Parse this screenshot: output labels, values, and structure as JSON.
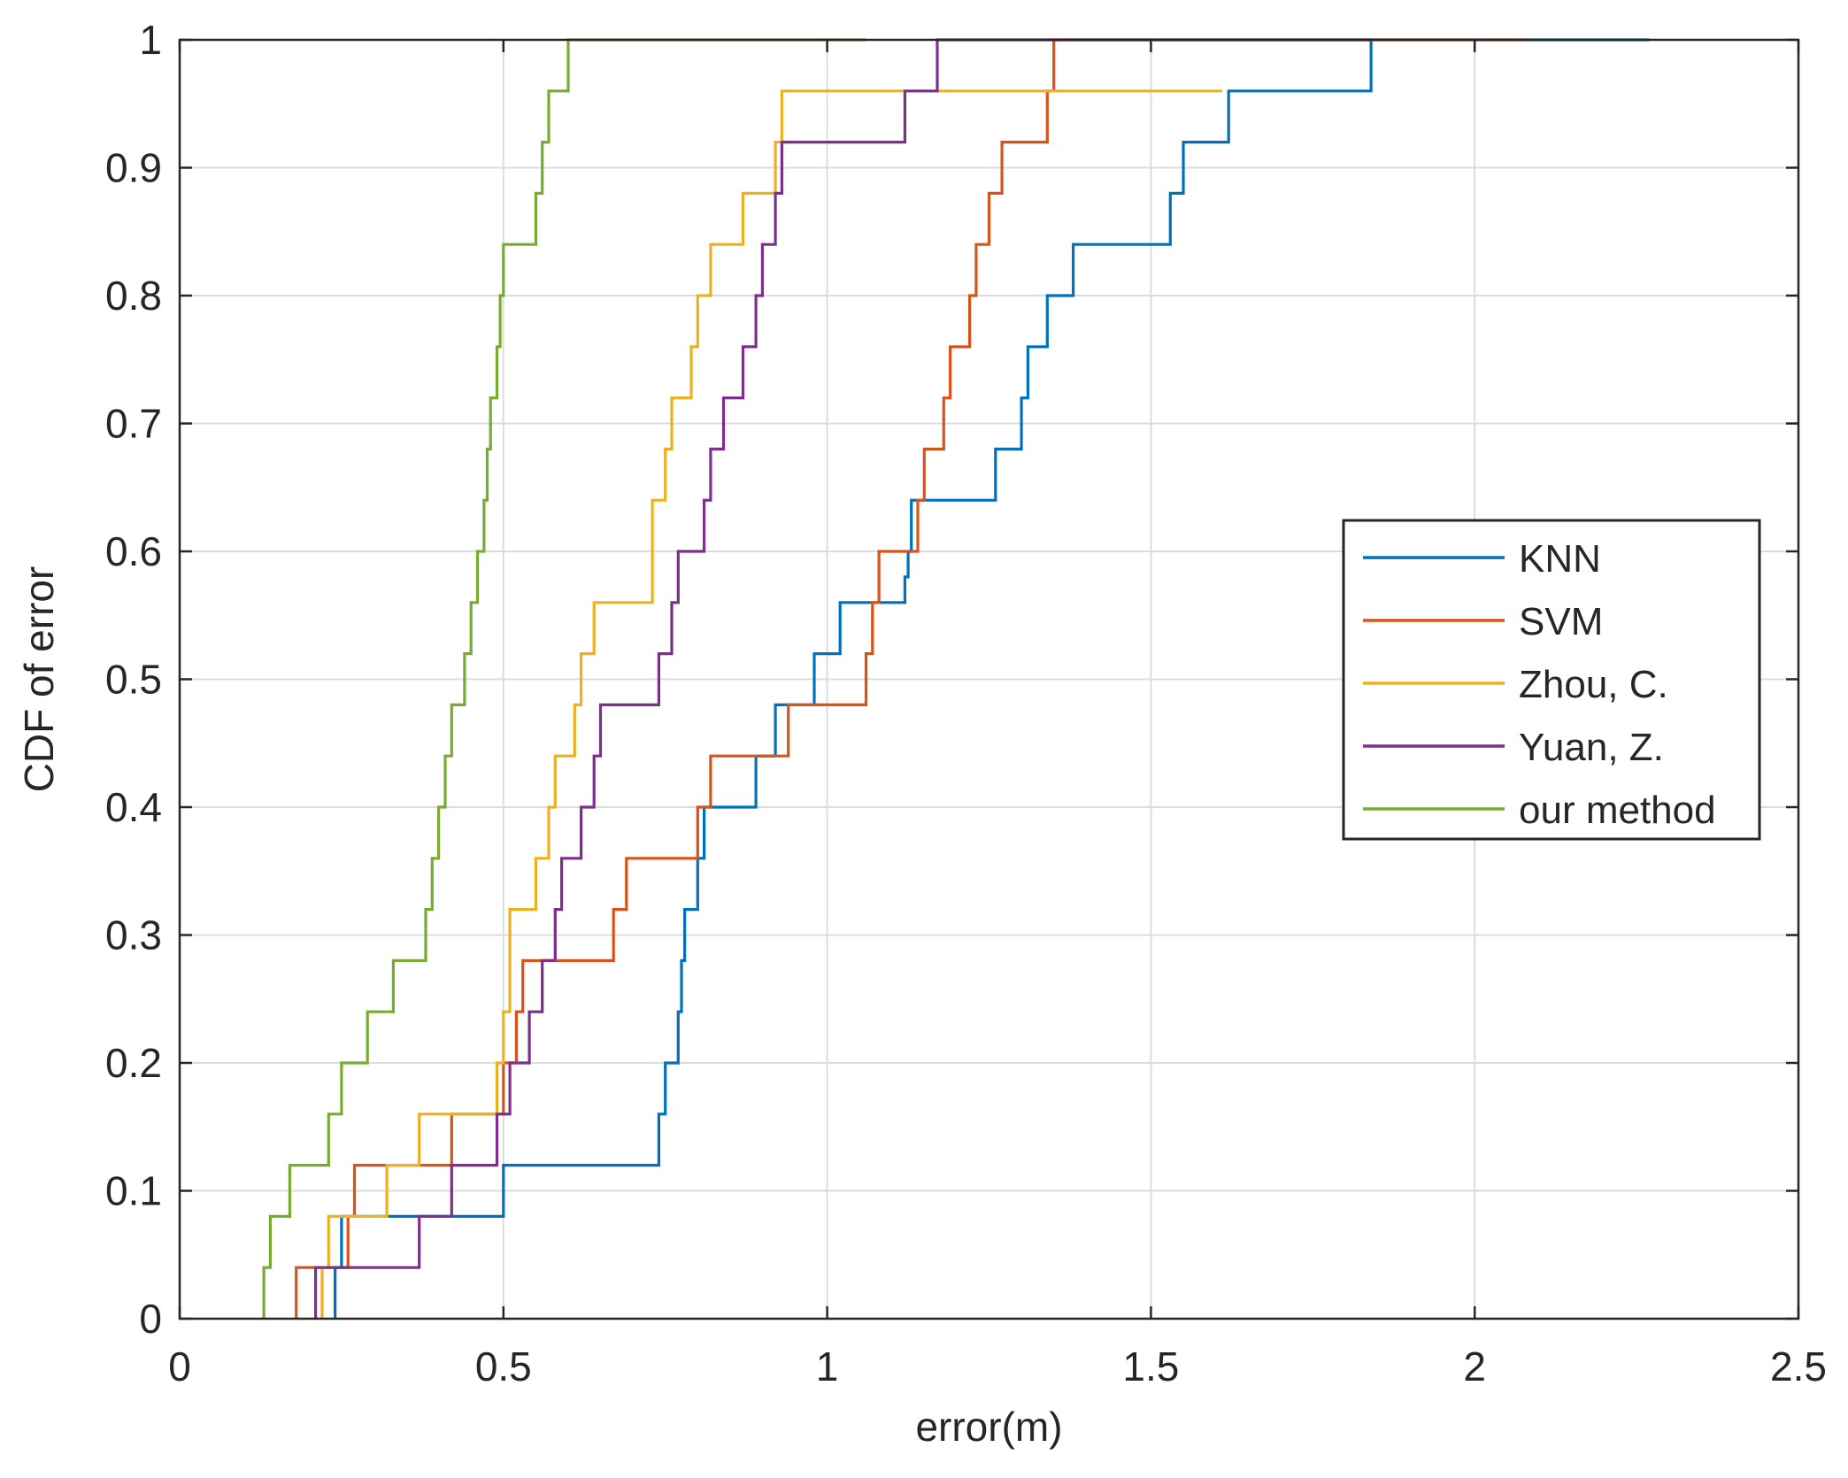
{
  "chart_data": {
    "type": "line",
    "style": "stairs",
    "title": "",
    "xlabel": "error(m)",
    "ylabel": "CDF of error",
    "xlim": [
      0,
      2.5
    ],
    "ylim": [
      0,
      1
    ],
    "xticks": [
      0,
      0.5,
      1,
      1.5,
      2,
      2.5
    ],
    "xtick_labels": [
      "0",
      "0.5",
      "1",
      "1.5",
      "2",
      "2.5"
    ],
    "yticks": [
      0,
      0.1,
      0.2,
      0.3,
      0.4,
      0.5,
      0.6,
      0.7,
      0.8,
      0.9,
      1
    ],
    "ytick_labels": [
      "0",
      "0.1",
      "0.2",
      "0.3",
      "0.4",
      "0.5",
      "0.6",
      "0.7",
      "0.8",
      "0.9",
      "1"
    ],
    "grid": true,
    "legend_position": "center-right",
    "series": [
      {
        "name": "KNN",
        "color": "#0072BD",
        "x": [
          0.24,
          0.25,
          0.5,
          0.74,
          0.75,
          0.77,
          0.775,
          0.78,
          0.8,
          0.81,
          0.89,
          0.92,
          0.98,
          1.02,
          1.12,
          1.125,
          1.13,
          1.26,
          1.3,
          1.31,
          1.34,
          1.38,
          1.53,
          1.55,
          1.62,
          1.84,
          2.27
        ],
        "y": [
          0.04,
          0.08,
          0.12,
          0.16,
          0.2,
          0.24,
          0.28,
          0.32,
          0.36,
          0.4,
          0.44,
          0.48,
          0.52,
          0.56,
          0.58,
          0.6,
          0.64,
          0.68,
          0.72,
          0.76,
          0.8,
          0.84,
          0.88,
          0.92,
          0.96,
          1.0,
          1.0
        ]
      },
      {
        "name": "SVM",
        "color": "#D95319",
        "x": [
          0.18,
          0.26,
          0.27,
          0.42,
          0.5,
          0.52,
          0.53,
          0.67,
          0.69,
          0.8,
          0.82,
          0.94,
          1.06,
          1.07,
          1.08,
          1.14,
          1.15,
          1.18,
          1.19,
          1.22,
          1.23,
          1.25,
          1.27,
          1.34,
          1.35,
          1.43,
          1.47,
          2.08
        ],
        "y": [
          0.04,
          0.08,
          0.12,
          0.16,
          0.2,
          0.24,
          0.28,
          0.32,
          0.36,
          0.4,
          0.44,
          0.48,
          0.52,
          0.56,
          0.6,
          0.64,
          0.68,
          0.72,
          0.76,
          0.8,
          0.84,
          0.88,
          0.92,
          0.96,
          1.0,
          1.0,
          1.0,
          1.0
        ]
      },
      {
        "name": "Zhou, C.",
        "color": "#EDB120",
        "x": [
          0.22,
          0.23,
          0.32,
          0.37,
          0.49,
          0.5,
          0.51,
          0.55,
          0.57,
          0.58,
          0.61,
          0.62,
          0.64,
          0.73,
          0.75,
          0.76,
          0.79,
          0.8,
          0.82,
          0.87,
          0.92,
          0.93,
          1.12,
          1.48,
          1.61
        ],
        "y": [
          0.04,
          0.08,
          0.12,
          0.16,
          0.2,
          0.24,
          0.32,
          0.36,
          0.4,
          0.44,
          0.48,
          0.52,
          0.56,
          0.64,
          0.68,
          0.72,
          0.76,
          0.8,
          0.84,
          0.88,
          0.92,
          0.96,
          0.96,
          0.96,
          0.96
        ]
      },
      {
        "name": "Yuan, Z.",
        "color": "#7E2F8E",
        "x": [
          0.21,
          0.37,
          0.42,
          0.49,
          0.51,
          0.54,
          0.56,
          0.58,
          0.59,
          0.62,
          0.64,
          0.65,
          0.74,
          0.76,
          0.77,
          0.81,
          0.82,
          0.84,
          0.87,
          0.89,
          0.9,
          0.92,
          0.93,
          1.12,
          1.17,
          1.26,
          1.27,
          1.33,
          1.47,
          1.62,
          1.84
        ],
        "y": [
          0.04,
          0.08,
          0.12,
          0.16,
          0.2,
          0.24,
          0.28,
          0.32,
          0.36,
          0.4,
          0.44,
          0.48,
          0.52,
          0.56,
          0.6,
          0.64,
          0.68,
          0.72,
          0.76,
          0.8,
          0.84,
          0.88,
          0.92,
          0.96,
          1.0,
          1.0,
          1.0,
          1.0,
          1.0,
          1.0,
          1.0
        ]
      },
      {
        "name": "our method",
        "color": "#77AC30",
        "x": [
          0.13,
          0.14,
          0.17,
          0.23,
          0.25,
          0.29,
          0.33,
          0.38,
          0.39,
          0.4,
          0.41,
          0.42,
          0.44,
          0.45,
          0.46,
          0.47,
          0.475,
          0.48,
          0.49,
          0.495,
          0.5,
          0.55,
          0.56,
          0.57,
          0.6,
          1.02,
          1.04,
          1.06
        ],
        "y": [
          0.04,
          0.08,
          0.12,
          0.16,
          0.2,
          0.24,
          0.28,
          0.32,
          0.36,
          0.4,
          0.44,
          0.48,
          0.52,
          0.56,
          0.6,
          0.64,
          0.68,
          0.72,
          0.76,
          0.8,
          0.84,
          0.88,
          0.92,
          0.96,
          1.0,
          1.0,
          1.0,
          1.0
        ]
      }
    ]
  }
}
